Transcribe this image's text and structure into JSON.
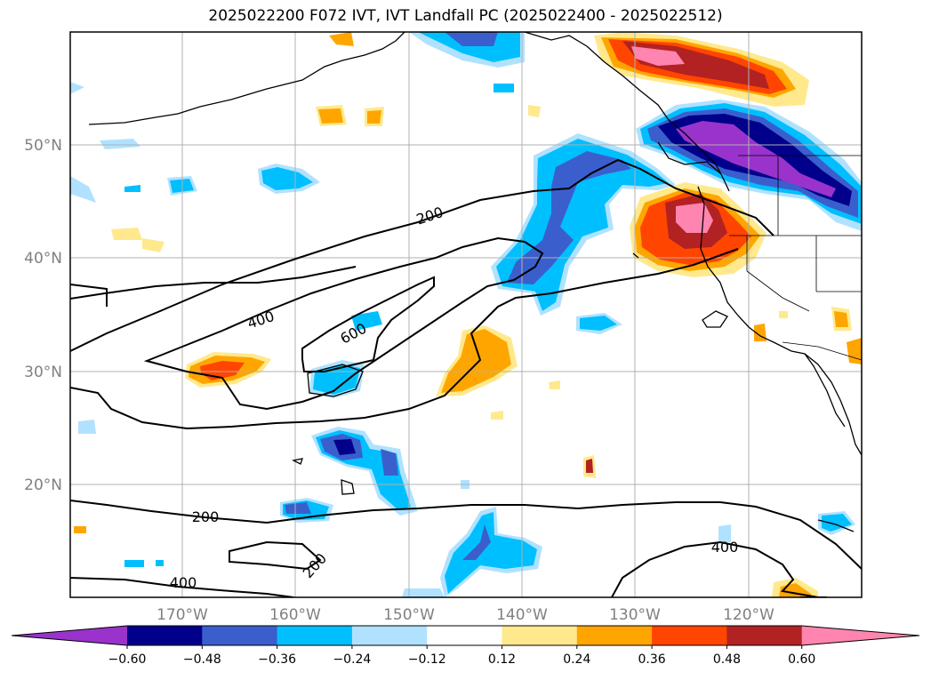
{
  "title": "2025022200 F072 IVT, IVT Landfall PC (2025022400 - 2025022512)",
  "map": {
    "lon_labels": [
      "170°W",
      "160°W",
      "150°W",
      "140°W",
      "130°W",
      "120°W"
    ],
    "lat_labels": [
      "50°N",
      "40°N",
      "30°N",
      "20°N"
    ],
    "contour_labels": [
      "200",
      "400",
      "600",
      "200",
      "200",
      "400",
      "400"
    ]
  },
  "colorbar": {
    "ticks": [
      "−0.60",
      "−0.48",
      "−0.36",
      "−0.24",
      "−0.12",
      "0.12",
      "0.24",
      "0.36",
      "0.48",
      "0.60"
    ],
    "colors": [
      "#9933cc",
      "#00008b",
      "#3a5fcd",
      "#00bfff",
      "#b0e2ff",
      "#ffffff",
      "#ffe98c",
      "#ffa500",
      "#ff4500",
      "#b22222",
      "#ff85b0"
    ]
  }
}
